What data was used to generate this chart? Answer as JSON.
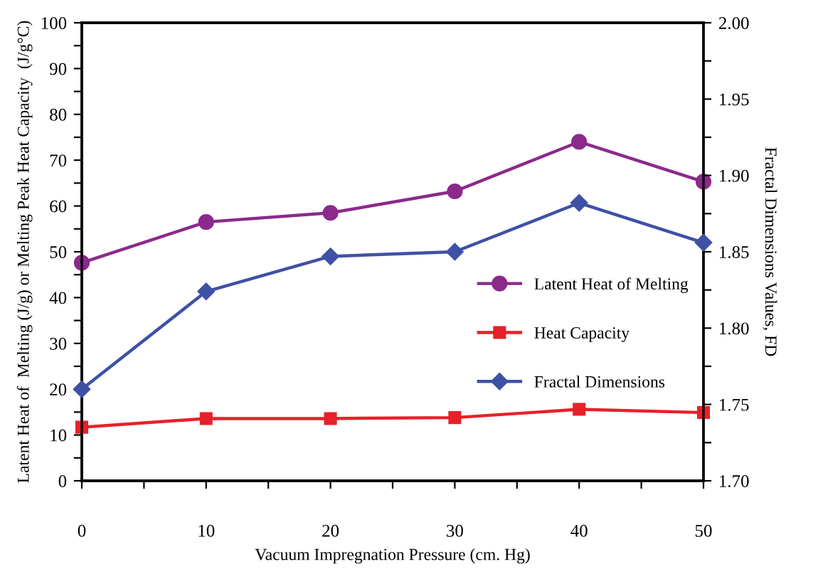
{
  "chart_data": {
    "type": "line",
    "xlabel": "Vacuum Impregnation Pressure (cm. Hg)",
    "ylabel": "Latent Heat of  Melting (J/g) or Melting Peak Heat Capacity  (J/g°C)",
    "y2label": "Fractal Dimensions Values, FD",
    "x": [
      0,
      10,
      20,
      30,
      40,
      50
    ],
    "series": [
      {
        "name": "Latent Heat of Melting",
        "color": "#8b2a8b",
        "marker": "circle",
        "values": [
          47.6,
          56.5,
          58.5,
          63.2,
          74.0,
          65.3
        ]
      },
      {
        "name": "Heat Capacity",
        "color": "#e8202a",
        "marker": "square",
        "values": [
          11.7,
          13.6,
          13.6,
          13.8,
          15.6,
          14.9
        ]
      },
      {
        "name": "Fractal Dimensions",
        "color": "#3f51a5",
        "marker": "diamond",
        "axis": "y2",
        "values": [
          1.76,
          1.824,
          1.847,
          1.85,
          1.882,
          1.856
        ]
      }
    ],
    "xlim": [
      0,
      50
    ],
    "xticks": [
      0,
      {
        "value": 5,
        "label": null
      },
      10,
      {
        "value": 15,
        "label": null
      },
      20,
      {
        "value": 25,
        "label": null
      },
      30,
      {
        "value": 35,
        "label": null
      },
      40,
      {
        "value": 45,
        "label": null
      },
      50
    ],
    "ylim": [
      0,
      100
    ],
    "yticks": [
      0,
      {
        "value": 5,
        "label": null
      },
      10,
      {
        "value": 15,
        "label": null
      },
      20,
      {
        "value": 25,
        "label": null
      },
      30,
      {
        "value": 35,
        "label": null
      },
      40,
      {
        "value": 45,
        "label": null
      },
      50,
      {
        "value": 55,
        "label": null
      },
      60,
      {
        "value": 65,
        "label": null
      },
      70,
      {
        "value": 75,
        "label": null
      },
      80,
      {
        "value": 85,
        "label": null
      },
      90,
      {
        "value": 95,
        "label": null
      },
      100
    ],
    "y2lim": [
      1.7,
      2.0
    ],
    "y2ticks": [
      {
        "value": 1.7,
        "label": "1.70"
      },
      {
        "value": 1.725,
        "label": null
      },
      {
        "value": 1.75,
        "label": "1.75"
      },
      {
        "value": 1.775,
        "label": null
      },
      {
        "value": 1.8,
        "label": "1.80"
      },
      {
        "value": 1.825,
        "label": null
      },
      {
        "value": 1.85,
        "label": "1.85"
      },
      {
        "value": 1.875,
        "label": null
      },
      {
        "value": 1.9,
        "label": "1.90"
      },
      {
        "value": 1.925,
        "label": null
      },
      {
        "value": 1.95,
        "label": "1.95"
      },
      {
        "value": 1.975,
        "label": null
      },
      {
        "value": 2.0,
        "label": "2.00"
      }
    ],
    "grid": false,
    "legend": "center right",
    "line_style": "solid"
  }
}
